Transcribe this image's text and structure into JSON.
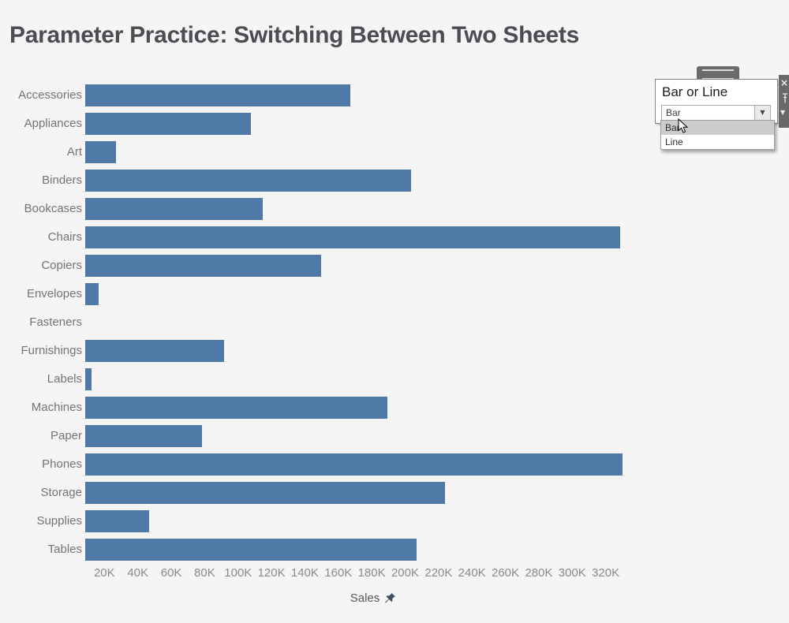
{
  "title": "Parameter Practice: Switching Between Two Sheets",
  "parameter_control": {
    "title": "Bar or Line",
    "selected_value": "Bar",
    "options": [
      "Bar",
      "Line"
    ],
    "highlighted_option": "Bar",
    "close_icon": "×",
    "dropdown_arrow_icon": "▼",
    "caret_down_icon": "▼"
  },
  "chart_data": {
    "type": "bar",
    "orientation": "horizontal",
    "title": "",
    "categories": [
      "Accessories",
      "Appliances",
      "Art",
      "Binders",
      "Bookcases",
      "Chairs",
      "Copiers",
      "Envelopes",
      "Fasteners",
      "Furnishings",
      "Labels",
      "Machines",
      "Paper",
      "Phones",
      "Storage",
      "Supplies",
      "Tables"
    ],
    "values": [
      167380,
      107532,
      27119,
      203413,
      114880,
      328449,
      149528,
      16476,
      3024,
      91705,
      12486,
      189239,
      78479,
      330007,
      223844,
      46674,
      206966
    ],
    "xlabel": "Sales",
    "ylabel": "",
    "tick_labels": [
      "20K",
      "40K",
      "60K",
      "80K",
      "100K",
      "120K",
      "140K",
      "160K",
      "180K",
      "200K",
      "220K",
      "240K",
      "260K",
      "280K",
      "300K",
      "320K"
    ],
    "tick_values": [
      20000,
      40000,
      60000,
      80000,
      100000,
      120000,
      140000,
      160000,
      180000,
      200000,
      220000,
      240000,
      260000,
      280000,
      300000,
      320000
    ],
    "xlim": [
      8500,
      335000
    ],
    "grid": false,
    "axis_pinned": true,
    "note": "Axis is pinned (pushpin icon); visible axis starts above 0 so the Fasteners bar (3,024) is not visible and the Labels bar is clipped",
    "bar_color": "#4e79a7"
  },
  "colors": {
    "background": "#f5f5f6",
    "bar": "#4e79a7",
    "title_text": "#4c4d52",
    "category_text": "#747474",
    "tick_text": "#8b8b8b",
    "axis_label_text": "#585858",
    "pin_icon": "#3d4f63",
    "param_strip_bg": "#696969",
    "highlight_option_bg": "#cccccc"
  }
}
